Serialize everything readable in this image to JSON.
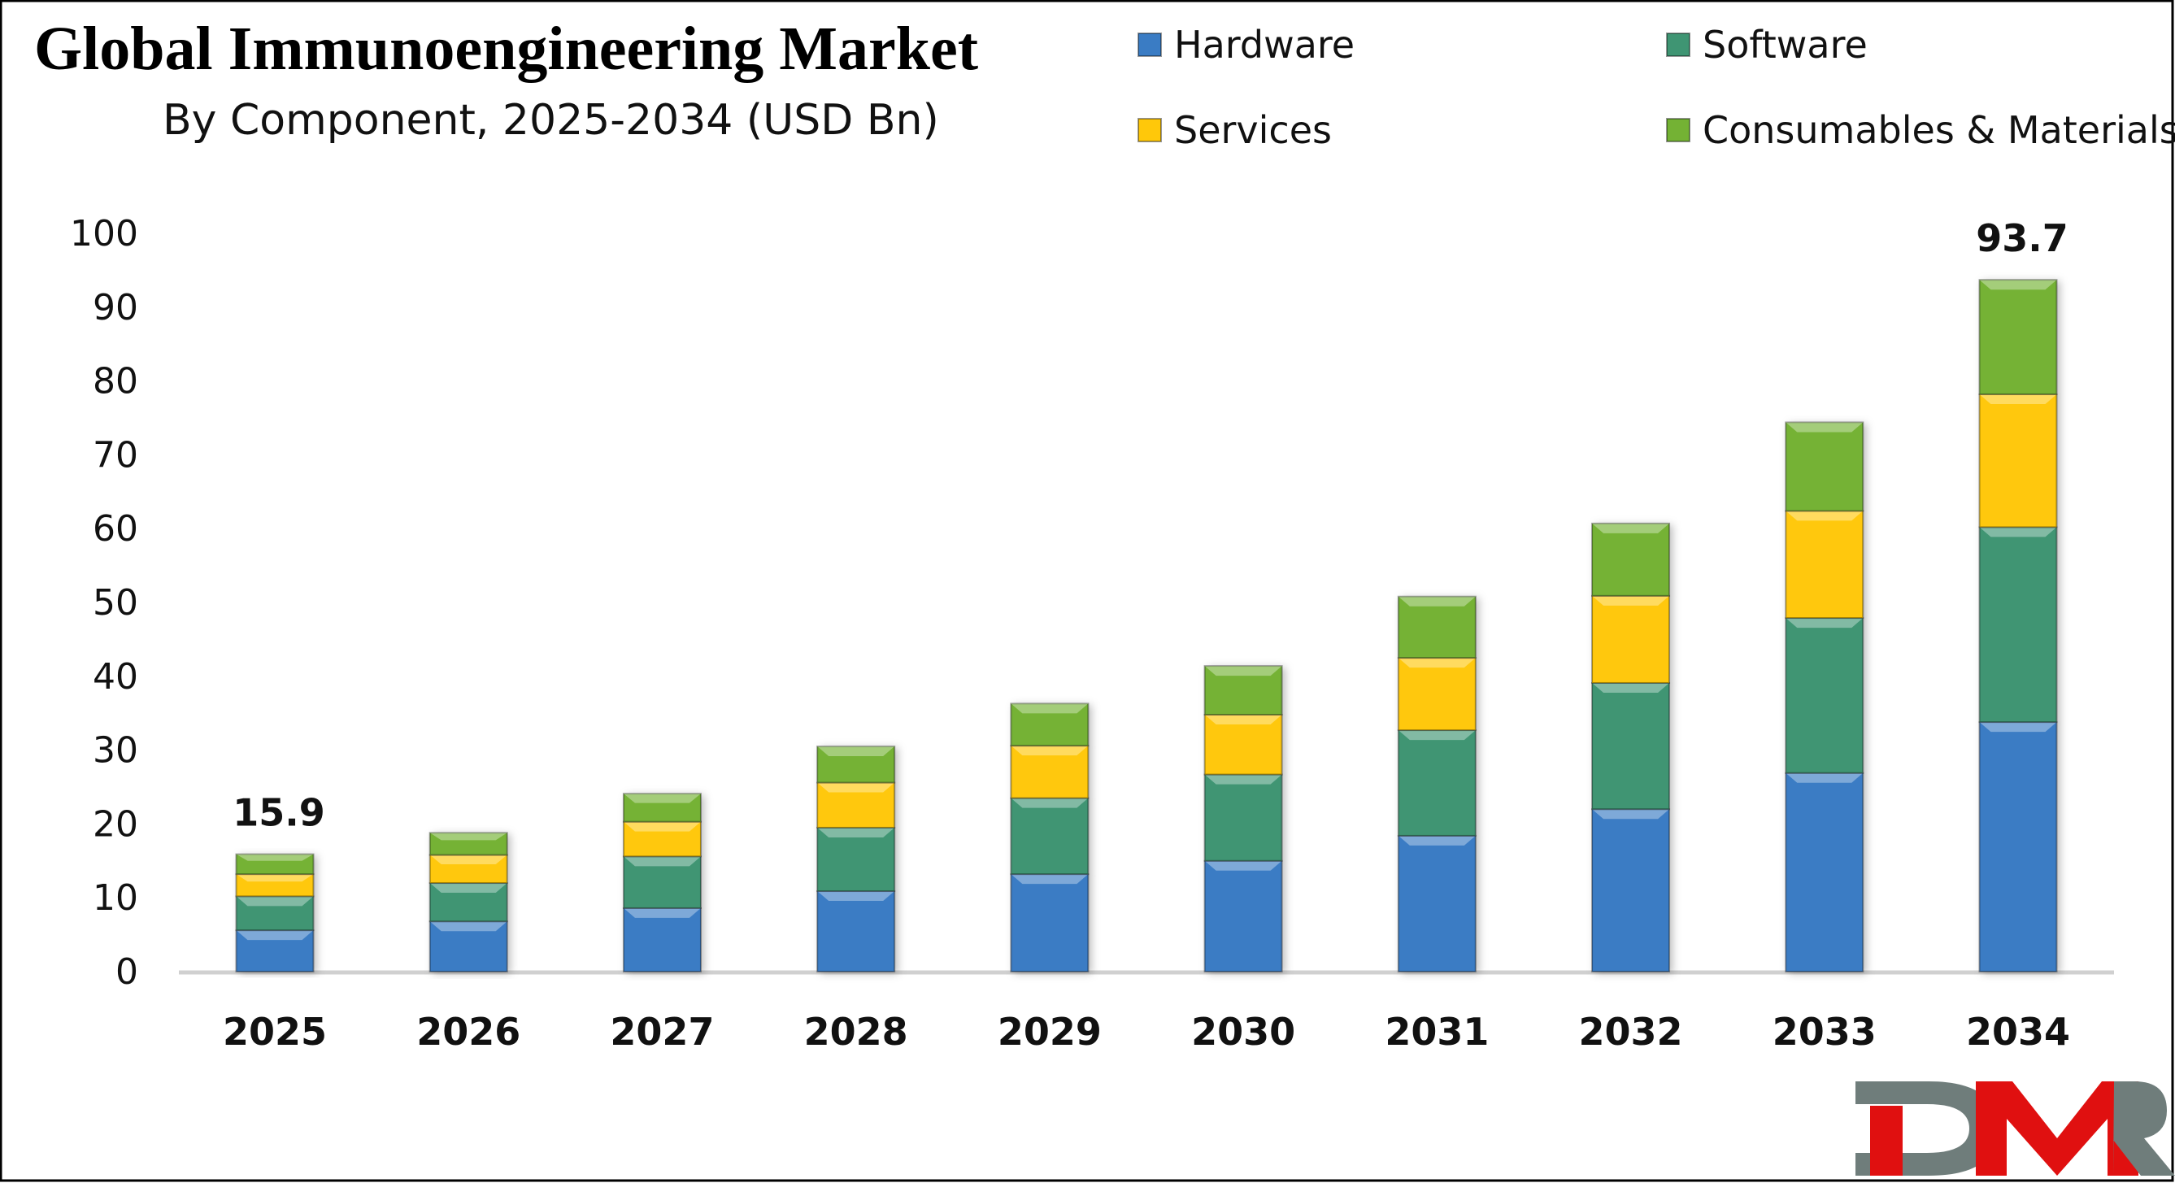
{
  "chart_data": {
    "type": "bar",
    "stacked": true,
    "title": "Global Immunoengineering Market",
    "subtitle": "By Component, 2025-2034 (USD Bn)",
    "xlabel": "",
    "ylabel": "",
    "ylim": [
      0,
      100
    ],
    "yticks": [
      0,
      10,
      20,
      30,
      40,
      50,
      60,
      70,
      80,
      90,
      100
    ],
    "grid": false,
    "legend_position": "top-right",
    "categories": [
      "2025",
      "2026",
      "2027",
      "2028",
      "2029",
      "2030",
      "2031",
      "2032",
      "2033",
      "2034"
    ],
    "series": [
      {
        "name": "Hardware",
        "color": "#3a7cc4",
        "values": [
          5.6,
          6.8,
          8.6,
          10.9,
          13.2,
          15.0,
          18.4,
          22.0,
          26.9,
          33.8
        ]
      },
      {
        "name": "Software",
        "color": "#3f9573",
        "values": [
          4.6,
          5.2,
          7.0,
          8.6,
          10.3,
          11.7,
          14.3,
          17.1,
          21.0,
          26.4
        ]
      },
      {
        "name": "Services",
        "color": "#ffc80a",
        "values": [
          3.0,
          3.8,
          4.7,
          6.1,
          7.1,
          8.1,
          9.8,
          11.8,
          14.5,
          18.0
        ]
      },
      {
        "name": "Consumables & Materials",
        "color": "#74b234",
        "values": [
          2.7,
          3.0,
          3.8,
          4.9,
          5.7,
          6.6,
          8.3,
          9.8,
          12.0,
          15.5
        ]
      }
    ],
    "data_labels": [
      {
        "category": "2025",
        "text": "15.9"
      },
      {
        "category": "2034",
        "text": "93.7"
      }
    ]
  },
  "logo": {
    "text": "DMR",
    "colors": [
      "#6f7d7b",
      "#e01010"
    ]
  }
}
